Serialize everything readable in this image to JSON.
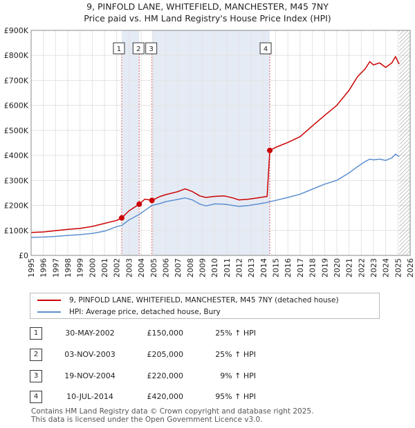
{
  "title_line1": "9, PINFOLD LANE, WHITEFIELD, MANCHESTER, M45 7NY",
  "title_line2": "Price paid vs. HM Land Registry's House Price Index (HPI)",
  "colors": {
    "property": "#cc0000",
    "hpi": "#5b8fd0",
    "shade": "#dce4f2",
    "grid": "#e3e3e3"
  },
  "chart_data": {
    "type": "line",
    "title": "Price paid vs. HM Land Registry's House Price Index (HPI)",
    "xlabel": "",
    "ylabel": "",
    "xlim": [
      1995,
      2026
    ],
    "ylim": [
      0,
      900000
    ],
    "y_ticks": [
      {
        "value": 0,
        "label": "£0"
      },
      {
        "value": 100000,
        "label": "£100K"
      },
      {
        "value": 200000,
        "label": "£200K"
      },
      {
        "value": 300000,
        "label": "£300K"
      },
      {
        "value": 400000,
        "label": "£400K"
      },
      {
        "value": 500000,
        "label": "£500K"
      },
      {
        "value": 600000,
        "label": "£600K"
      },
      {
        "value": 700000,
        "label": "£700K"
      },
      {
        "value": 800000,
        "label": "£800K"
      },
      {
        "value": 900000,
        "label": "£900K"
      }
    ],
    "x_ticks": [
      "1995",
      "1996",
      "1997",
      "1998",
      "1999",
      "2000",
      "2001",
      "2002",
      "2003",
      "2004",
      "2005",
      "2006",
      "2007",
      "2008",
      "2009",
      "2010",
      "2011",
      "2012",
      "2013",
      "2014",
      "2015",
      "2016",
      "2017",
      "2018",
      "2019",
      "2020",
      "2021",
      "2022",
      "2023",
      "2024",
      "2025",
      "2026"
    ],
    "shaded_ranges": [
      [
        2002.41,
        2003.84
      ],
      [
        2004.88,
        2014.52
      ]
    ],
    "series": [
      {
        "name": "9, PINFOLD LANE, WHITEFIELD, MANCHESTER, M45 7NY (detached house)",
        "color": "#cc0000",
        "points": [
          [
            1995,
            92000
          ],
          [
            1996,
            94000
          ],
          [
            1997,
            99000
          ],
          [
            1998,
            104000
          ],
          [
            1999,
            108000
          ],
          [
            2000,
            116000
          ],
          [
            2001,
            128000
          ],
          [
            2002,
            140000
          ],
          [
            2002.41,
            150000
          ],
          [
            2003,
            178000
          ],
          [
            2003.84,
            205000
          ],
          [
            2004.3,
            225000
          ],
          [
            2004.88,
            220000
          ],
          [
            2005.5,
            235000
          ],
          [
            2006,
            243000
          ],
          [
            2007,
            255000
          ],
          [
            2007.6,
            266000
          ],
          [
            2008.2,
            255000
          ],
          [
            2008.8,
            238000
          ],
          [
            2009.3,
            232000
          ],
          [
            2010,
            236000
          ],
          [
            2010.8,
            238000
          ],
          [
            2011.5,
            230000
          ],
          [
            2012,
            222000
          ],
          [
            2012.8,
            225000
          ],
          [
            2013.5,
            230000
          ],
          [
            2014.3,
            236000
          ],
          [
            2014.52,
            420000
          ],
          [
            2015,
            432000
          ],
          [
            2016,
            452000
          ],
          [
            2017,
            475000
          ],
          [
            2018,
            518000
          ],
          [
            2019,
            560000
          ],
          [
            2020,
            600000
          ],
          [
            2021,
            660000
          ],
          [
            2021.7,
            715000
          ],
          [
            2022.3,
            745000
          ],
          [
            2022.7,
            775000
          ],
          [
            2023,
            762000
          ],
          [
            2023.5,
            770000
          ],
          [
            2024,
            752000
          ],
          [
            2024.5,
            770000
          ],
          [
            2024.8,
            795000
          ],
          [
            2025.1,
            765000
          ]
        ]
      },
      {
        "name": "HPI: Average price, detached house, Bury",
        "color": "#5b8fd0",
        "points": [
          [
            1995,
            72000
          ],
          [
            1996,
            73500
          ],
          [
            1997,
            76000
          ],
          [
            1998,
            80000
          ],
          [
            1999,
            83000
          ],
          [
            2000,
            88000
          ],
          [
            2001,
            97000
          ],
          [
            2002,
            115000
          ],
          [
            2002.41,
            120000
          ],
          [
            2003,
            142000
          ],
          [
            2003.84,
            164000
          ],
          [
            2004.3,
            180000
          ],
          [
            2004.88,
            200000
          ],
          [
            2005.5,
            207000
          ],
          [
            2006,
            215000
          ],
          [
            2007,
            224000
          ],
          [
            2007.6,
            230000
          ],
          [
            2008.2,
            222000
          ],
          [
            2008.8,
            205000
          ],
          [
            2009.3,
            198000
          ],
          [
            2010,
            206000
          ],
          [
            2010.8,
            205000
          ],
          [
            2011.5,
            200000
          ],
          [
            2012,
            196000
          ],
          [
            2012.8,
            200000
          ],
          [
            2013.5,
            205000
          ],
          [
            2014.3,
            212000
          ],
          [
            2014.52,
            215000
          ],
          [
            2015,
            220000
          ],
          [
            2016,
            232000
          ],
          [
            2017,
            245000
          ],
          [
            2018,
            265000
          ],
          [
            2019,
            285000
          ],
          [
            2020,
            300000
          ],
          [
            2021,
            330000
          ],
          [
            2021.7,
            355000
          ],
          [
            2022.3,
            375000
          ],
          [
            2022.7,
            385000
          ],
          [
            2023,
            382000
          ],
          [
            2023.5,
            385000
          ],
          [
            2024,
            380000
          ],
          [
            2024.5,
            390000
          ],
          [
            2024.8,
            405000
          ],
          [
            2025.1,
            395000
          ]
        ]
      }
    ],
    "annotations": [
      {
        "label": "1",
        "x": 2002.41,
        "y": 150000
      },
      {
        "label": "2",
        "x": 2003.84,
        "y": 205000
      },
      {
        "label": "3",
        "x": 2004.88,
        "y": 220000
      },
      {
        "label": "4",
        "x": 2014.52,
        "y": 420000
      }
    ]
  },
  "legend": [
    {
      "label": "9, PINFOLD LANE, WHITEFIELD, MANCHESTER, M45 7NY (detached house)",
      "color": "#cc0000"
    },
    {
      "label": "HPI: Average price, detached house, Bury",
      "color": "#5b8fd0"
    }
  ],
  "transactions": [
    {
      "num": "1",
      "date": "30-MAY-2002",
      "price": "£150,000",
      "hpi": "25% ↑ HPI"
    },
    {
      "num": "2",
      "date": "03-NOV-2003",
      "price": "£205,000",
      "hpi": "25% ↑ HPI"
    },
    {
      "num": "3",
      "date": "19-NOV-2004",
      "price": "£220,000",
      "hpi": "9% ↑ HPI"
    },
    {
      "num": "4",
      "date": "10-JUL-2014",
      "price": "£420,000",
      "hpi": "95% ↑ HPI"
    }
  ],
  "footer_line1": "Contains HM Land Registry data © Crown copyright and database right 2025.",
  "footer_line2": "This data is licensed under the Open Government Licence v3.0."
}
